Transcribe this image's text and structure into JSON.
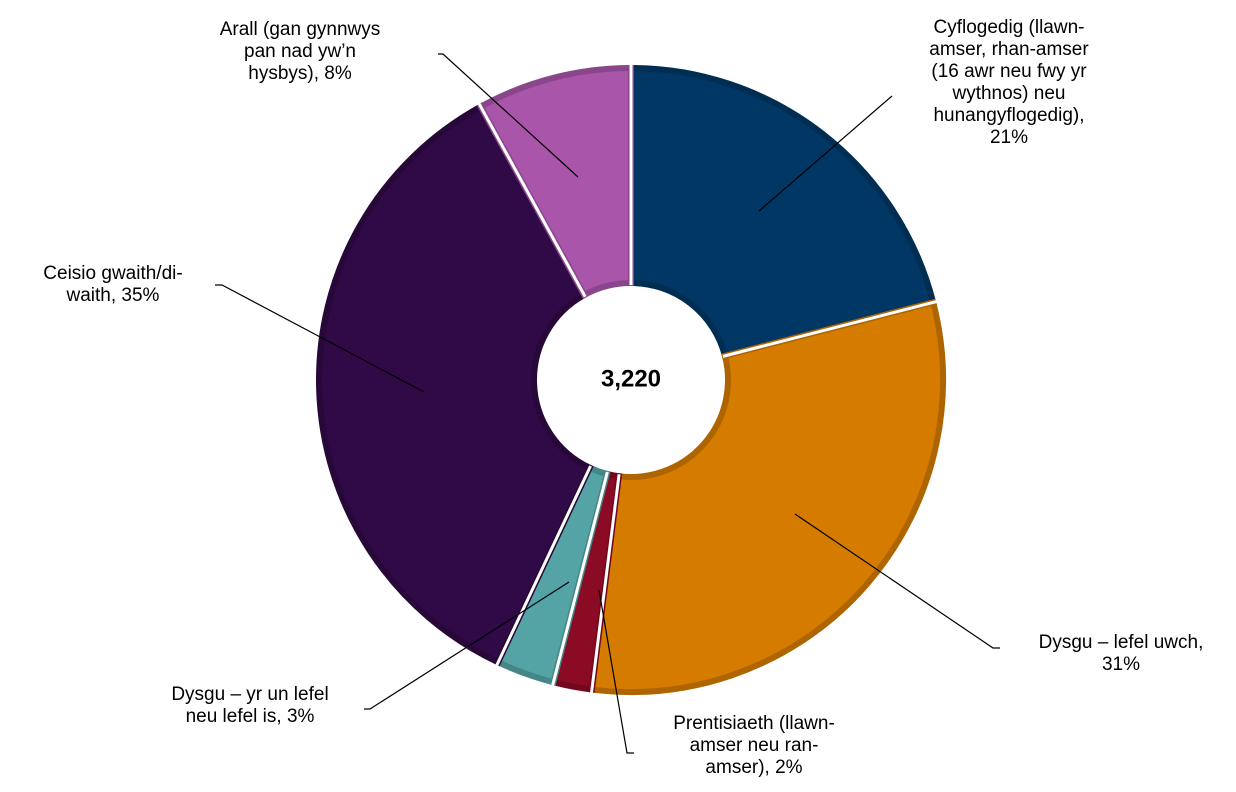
{
  "chart_data": {
    "type": "pie",
    "variant": "donut",
    "title": "",
    "center_label": "3,220",
    "slices": [
      {
        "name": "Cyflogedig (llawn-amser, rhan-amser (16 awr neu fwy yr wythnos) neu hunangyflogedig)",
        "value": 21,
        "label_lines": [
          "Cyflogedig (llawn-",
          "amser, rhan-amser",
          "(16 awr neu fwy yr",
          "wythnos) neu",
          "hunangyflogedig),",
          "21%"
        ],
        "color": "#003764"
      },
      {
        "name": "Dysgu – lefel uwch",
        "value": 31,
        "label_lines": [
          "Dysgu – lefel uwch,",
          "31%"
        ],
        "color": "#D47B00"
      },
      {
        "name": "Prentisiaeth (llawn-amser neu ran-amser)",
        "value": 2,
        "label_lines": [
          "Prentisiaeth (llawn-",
          "amser neu ran-",
          "amser), 2%"
        ],
        "color": "#8B0A24"
      },
      {
        "name": "Dysgu – yr un lefel neu lefel is",
        "value": 3,
        "label_lines": [
          "Dysgu – yr un lefel",
          "neu lefel is, 3%"
        ],
        "color": "#54A3A5"
      },
      {
        "name": "Ceisio gwaith/di-waith",
        "value": 35,
        "label_lines": [
          "Ceisio gwaith/di-",
          "waith, 35%"
        ],
        "color": "#300A46"
      },
      {
        "name": "Arall (gan gynnwys pan nad yw’n hysbys)",
        "value": 8,
        "label_lines": [
          "Arall (gan gynnwys",
          "pan nad yw’n",
          "hysbys), 8%"
        ],
        "color": "#A855AA"
      }
    ],
    "legend": "none",
    "data_labels": "outside-with-leader-lines"
  }
}
